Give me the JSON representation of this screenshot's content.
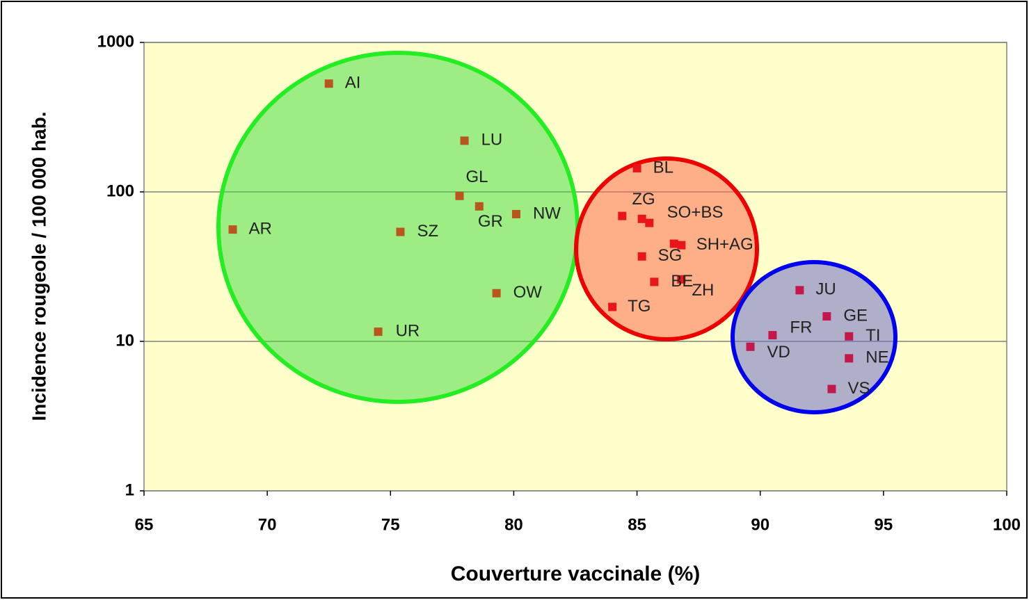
{
  "chart_data": {
    "type": "scatter",
    "xlabel": "Couverture vaccinale (%)",
    "ylabel": "Incidence rougeole / 100 000 hab.",
    "xlim": [
      65,
      100
    ],
    "xticks": [
      65,
      70,
      75,
      80,
      85,
      90,
      95,
      100
    ],
    "ylim": [
      1,
      1000
    ],
    "yticks": [
      1,
      10,
      100,
      1000
    ],
    "ylog": true,
    "grid": true,
    "series": [
      {
        "color": "#b8561e",
        "x": [
          72.5,
          78.0,
          77.8,
          78.6,
          80.1,
          68.6,
          75.4,
          79.3,
          74.5
        ],
        "values": [
          530,
          220,
          94,
          80,
          71,
          56,
          54,
          21,
          11.6
        ],
        "labels": [
          "AI",
          "LU",
          "GL",
          "GR",
          "NW",
          "AR",
          "SZ",
          "OW",
          "UR"
        ]
      },
      {
        "color": "#e8161b",
        "x": [
          85.0,
          84.4,
          85.2,
          85.5,
          86.5,
          86.8,
          85.2,
          86.8,
          85.7,
          84.0
        ],
        "values": [
          144,
          69,
          66,
          62,
          45,
          44,
          37,
          26,
          25,
          17
        ],
        "labels": [
          "BL",
          "ZG",
          "SO+BS",
          null,
          "SH+AG",
          null,
          "SG",
          "ZH",
          "BE",
          "TG"
        ]
      },
      {
        "color": "#c4174c",
        "x": [
          91.6,
          92.7,
          90.5,
          93.6,
          89.6,
          93.6,
          92.9
        ],
        "values": [
          22,
          14.7,
          11,
          10.8,
          9.2,
          7.7,
          4.8
        ],
        "labels": [
          "JU",
          "GE",
          "FR",
          "TI",
          "VD",
          "NE",
          "VS"
        ]
      }
    ]
  }
}
